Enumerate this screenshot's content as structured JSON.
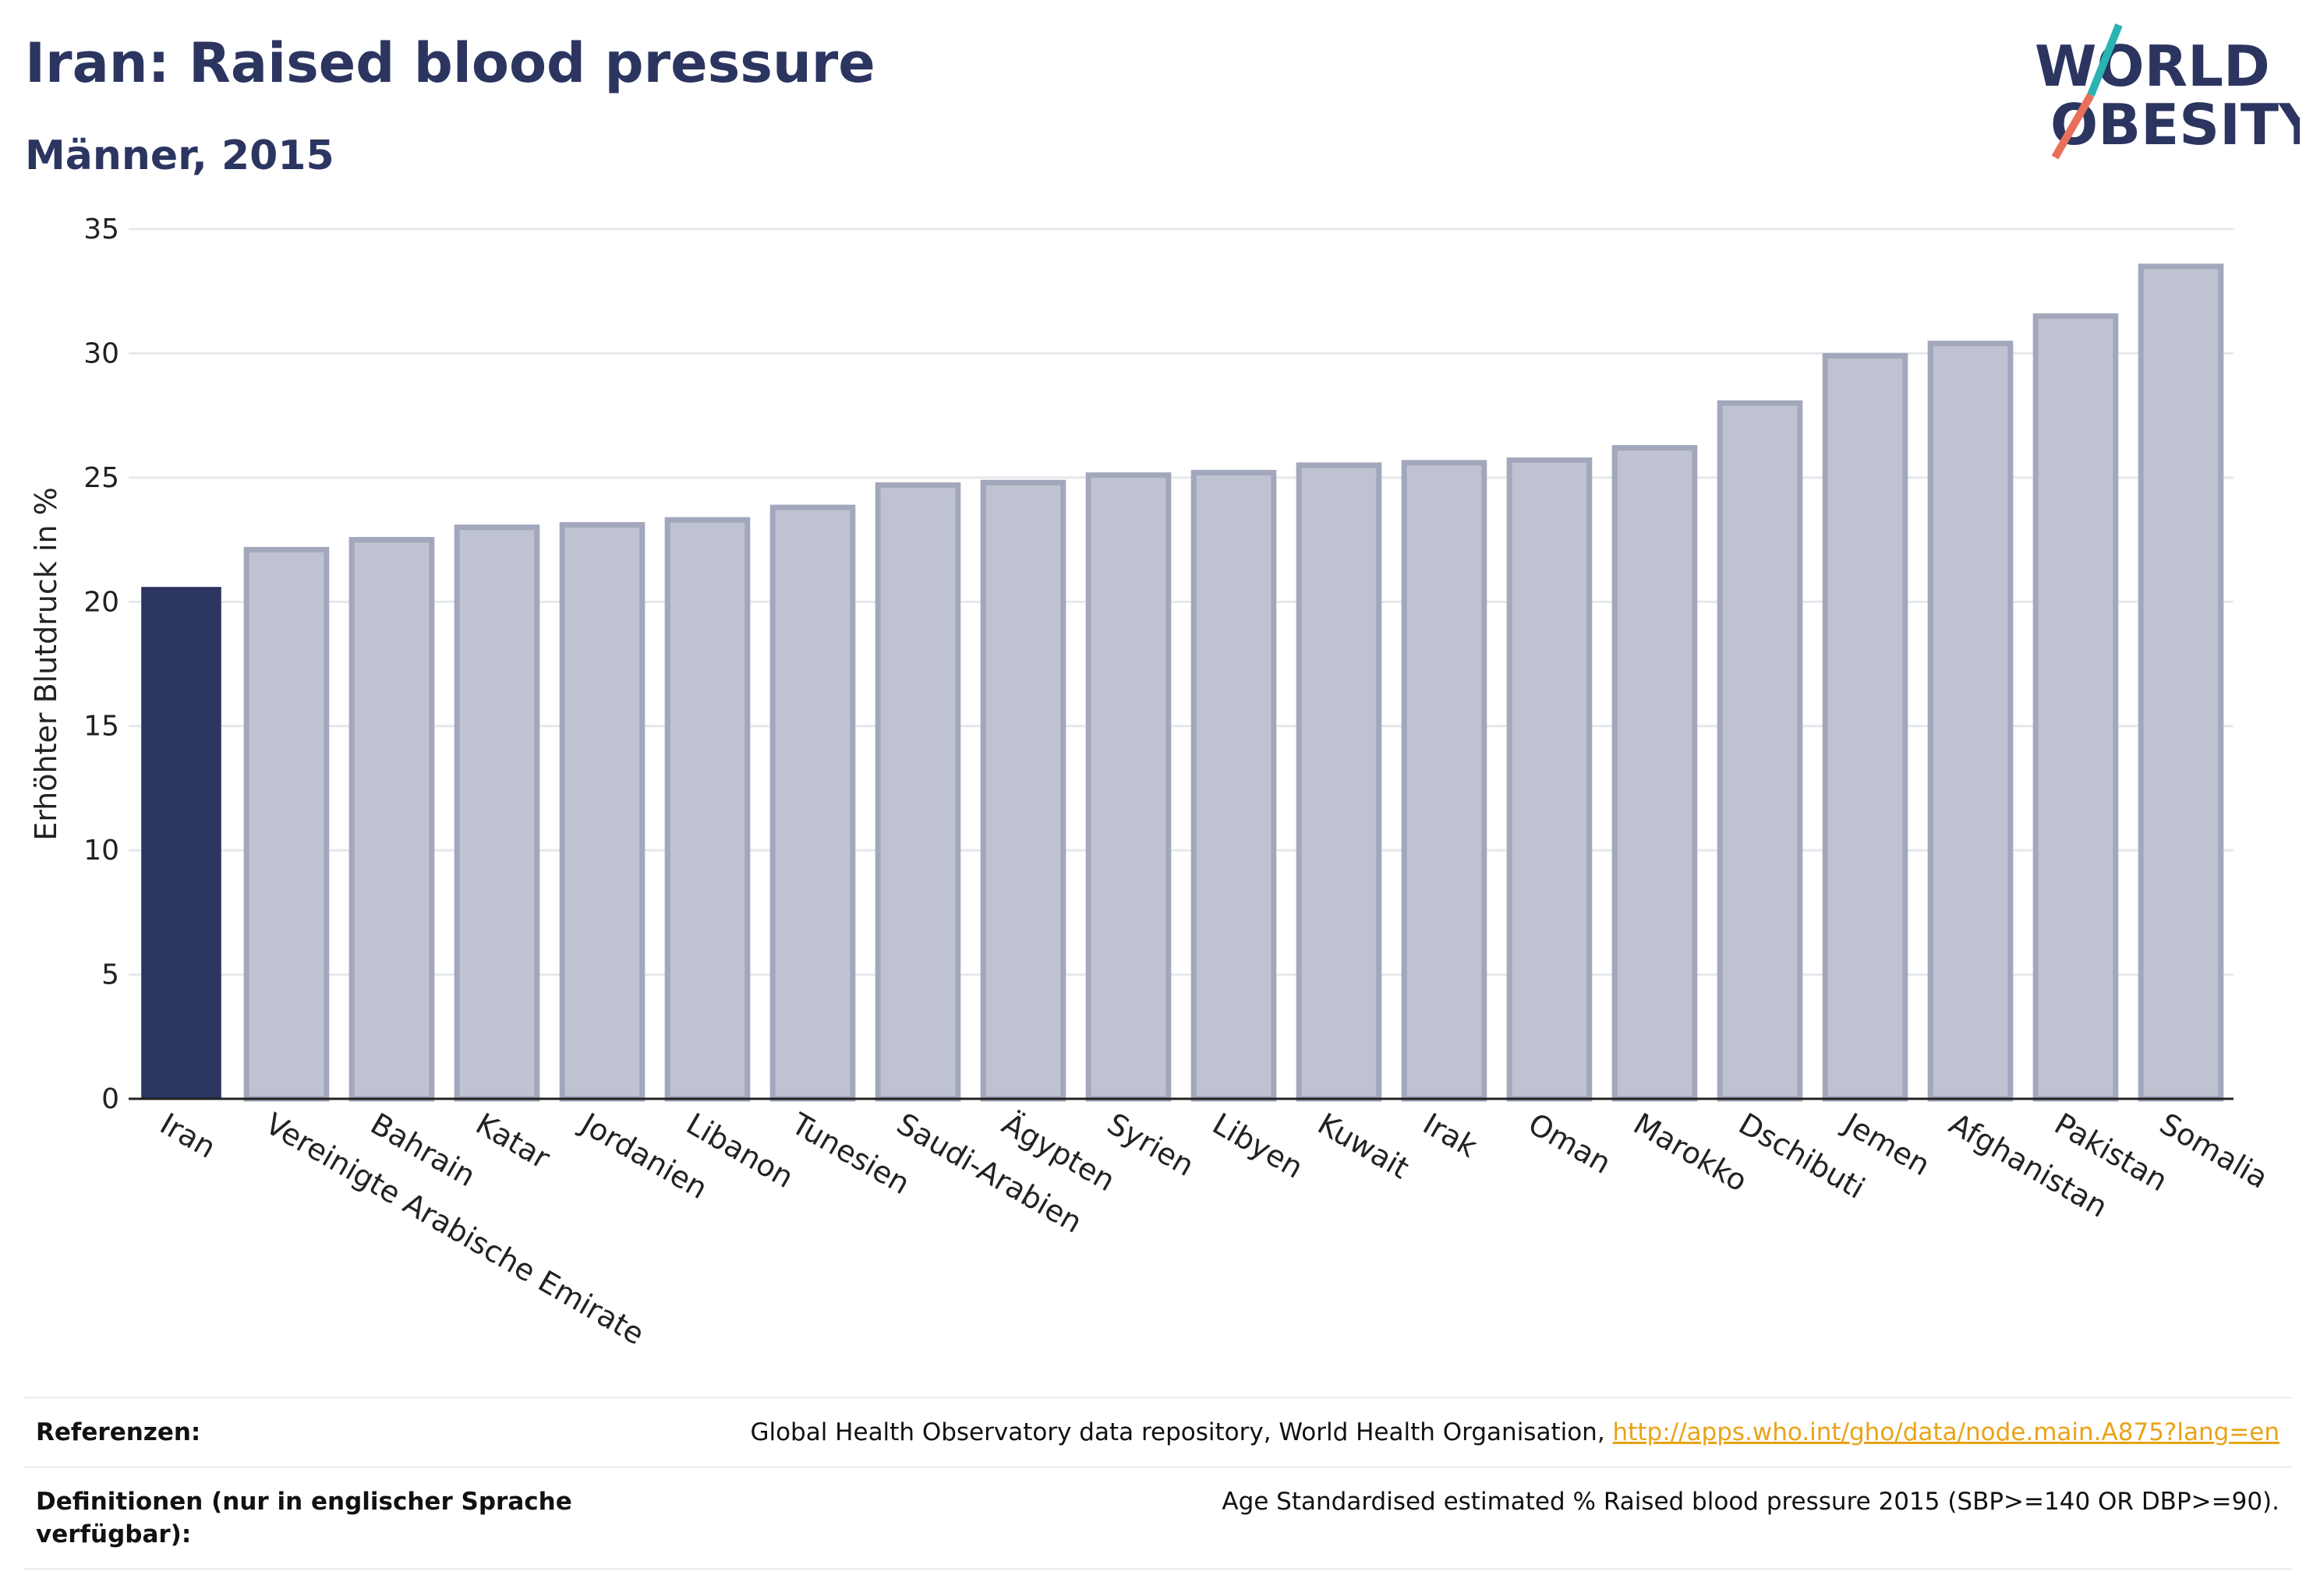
{
  "header": {
    "title": "Iran: Raised blood pressure",
    "subtitle": "Männer, 2015"
  },
  "logo": {
    "line1": "WORLD",
    "line2": "OBESITY"
  },
  "colors": {
    "highlight": "#2b3560",
    "bar_fill": "#bfc3d1",
    "bar_stroke": "#a2a7bb",
    "grid": "#e6e8ee",
    "accent_teal": "#2ab3b1",
    "accent_coral": "#e8705a",
    "link": "#e8a317"
  },
  "chart_data": {
    "type": "bar",
    "ylabel": "Erhöhter Blutdruck in %",
    "ylim": [
      0,
      35
    ],
    "yticks": [
      0,
      5,
      10,
      15,
      20,
      25,
      30,
      35
    ],
    "categories": [
      "Iran",
      "Vereinigte Arabische Emirate",
      "Bahrain",
      "Katar",
      "Jordanien",
      "Libanon",
      "Tunesien",
      "Saudi-Arabien",
      "Ägypten",
      "Syrien",
      "Libyen",
      "Kuwait",
      "Irak",
      "Oman",
      "Marokko",
      "Dschibuti",
      "Jemen",
      "Afghanistan",
      "Pakistan",
      "Somalia"
    ],
    "values": [
      20.6,
      22.1,
      22.5,
      23.0,
      23.1,
      23.3,
      23.8,
      24.7,
      24.8,
      25.1,
      25.2,
      25.5,
      25.6,
      25.7,
      26.2,
      28.0,
      29.9,
      30.4,
      31.5,
      33.5
    ],
    "highlight_index": 0,
    "grid": true
  },
  "footer": {
    "references_label": "Referenzen:",
    "references_text": "Global Health Observatory data repository, World Health Organisation, ",
    "references_link": "http://apps.who.int/gho/data/node.main.A875?lang=en",
    "definitions_label": "Definitionen (nur in englischer Sprache verfügbar):",
    "definitions_text": "Age Standardised estimated % Raised blood pressure 2015 (SBP>=140 OR DBP>=90)."
  }
}
